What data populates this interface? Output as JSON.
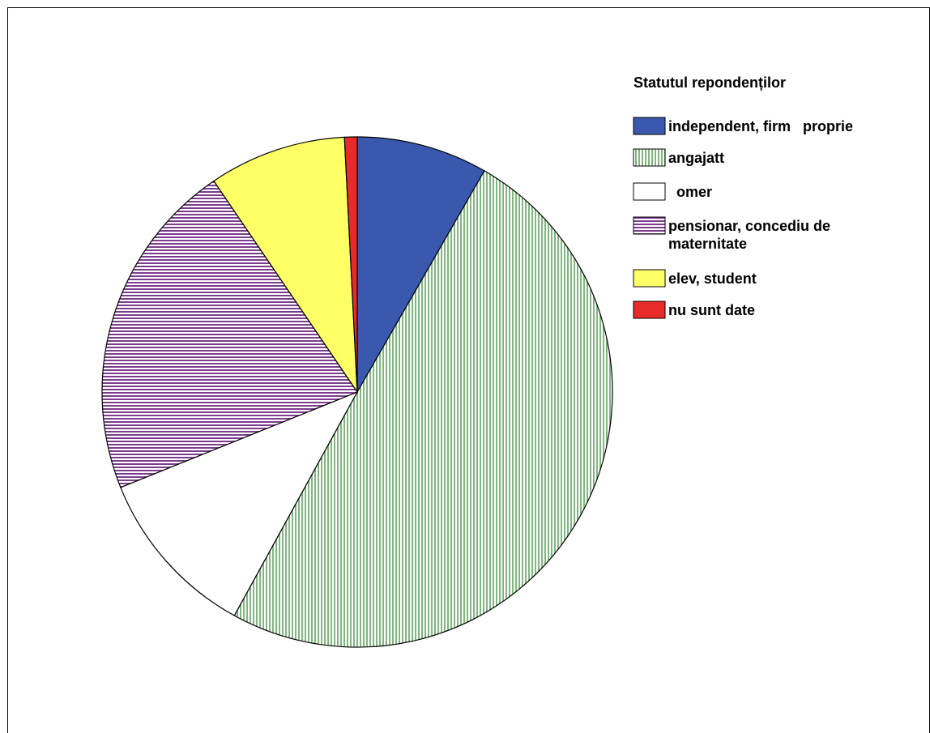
{
  "chart_data": {
    "type": "pie",
    "legend_title": "Statutul repondenților",
    "legend_position": "right",
    "series": [
      {
        "name": "",
        "slices": [
          {
            "label": "independent, firm   proprie",
            "value": 8.3,
            "color": "#3a58ae",
            "pattern": "solid"
          },
          {
            "label": "angajatt",
            "value": 49.7,
            "color": "#7fb77f",
            "pattern": "vertical-stripes"
          },
          {
            "label": "  omer",
            "value": 10.9,
            "color": "#ffffff",
            "pattern": "solid"
          },
          {
            "label": "pensionar, concediu de|maternitate",
            "value": 21.6,
            "color": "#7d3d8e",
            "pattern": "horizontal-stripes"
          },
          {
            "label": "elev, student",
            "value": 8.7,
            "color": "#ffff66",
            "pattern": "solid"
          },
          {
            "label": "nu sunt date",
            "value": 0.8,
            "color": "#e82a2a",
            "pattern": "solid"
          }
        ]
      }
    ]
  }
}
